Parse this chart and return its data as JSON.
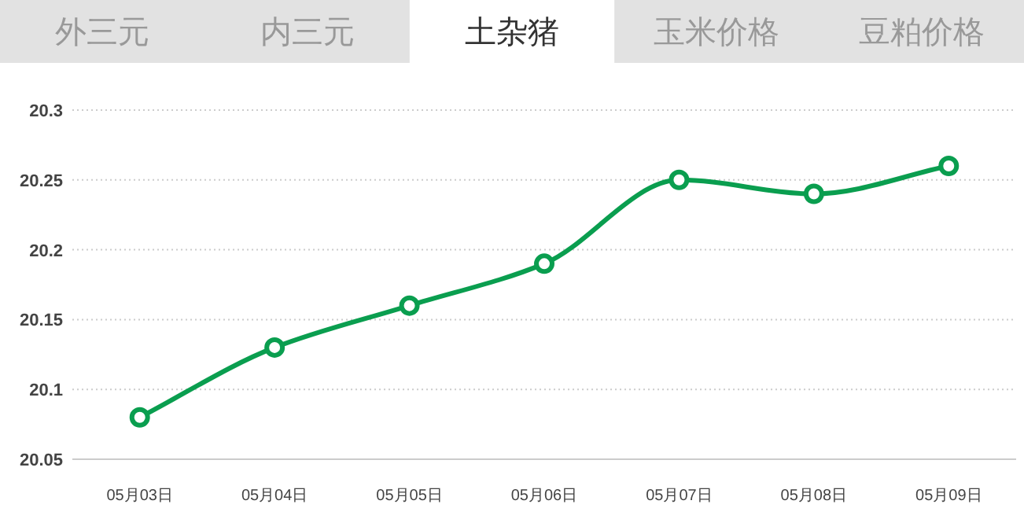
{
  "chart_data": {
    "type": "line",
    "title": "土杂猪",
    "annotations": [
      "外三元",
      "内三元",
      "玉米价格",
      "豆粕价格"
    ],
    "categories": [
      "05月03日",
      "05月04日",
      "05月05日",
      "05月06日",
      "05月07日",
      "05月08日",
      "05月09日"
    ],
    "series": [
      {
        "color": "#0a9e4f",
        "values": [
          20.08,
          20.13,
          20.16,
          20.19,
          20.25,
          20.24,
          20.26
        ]
      }
    ],
    "ylim": [
      20.05,
      20.3
    ],
    "yticks": [
      20.05,
      20.1,
      20.15,
      20.2,
      20.25,
      20.3
    ],
    "grid": "y",
    "marker": "circle",
    "line_style": "solid"
  }
}
